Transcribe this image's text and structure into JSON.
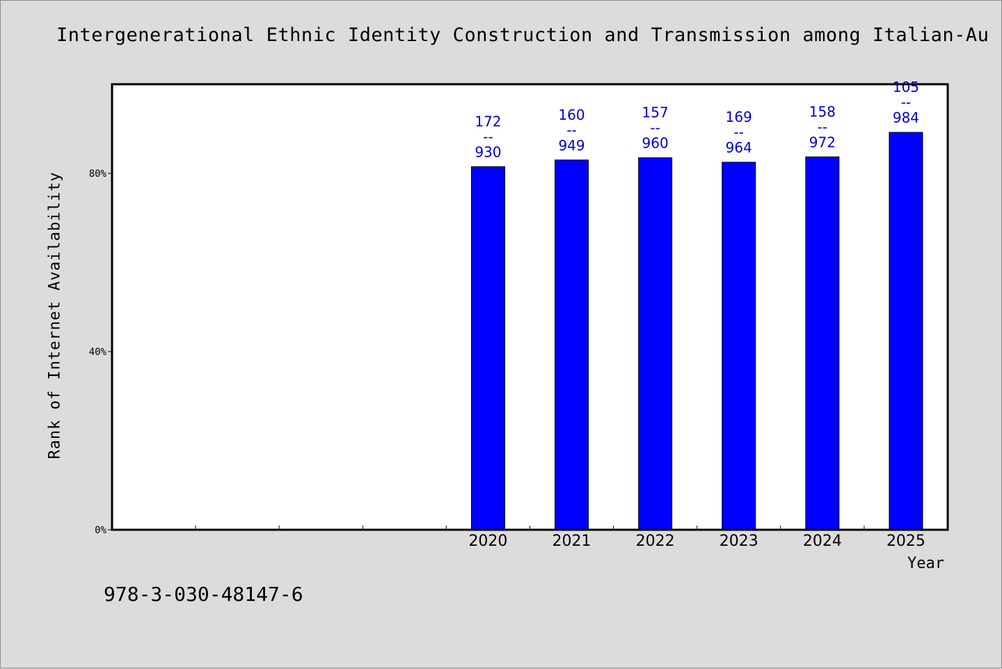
{
  "chart_data": {
    "type": "bar",
    "title": "Intergenerational Ethnic Identity Construction and Transmission among Italian-Au",
    "xlabel": "Year",
    "ylabel": "Rank of Internet Availability",
    "categories": [
      "",
      "",
      "",
      "",
      "2020",
      "2021",
      "2022",
      "2023",
      "2024",
      "2025"
    ],
    "values": [
      null,
      null,
      null,
      null,
      81.5,
      83.0,
      83.5,
      82.5,
      83.7,
      89.2
    ],
    "data_labels": [
      null,
      null,
      null,
      null,
      [
        "172",
        "--",
        "930"
      ],
      [
        "160",
        "--",
        "949"
      ],
      [
        "157",
        "--",
        "960"
      ],
      [
        "169",
        "--",
        "964"
      ],
      [
        "158",
        "--",
        "972"
      ],
      [
        "105",
        "--",
        "984"
      ]
    ],
    "ylim": [
      0,
      100
    ],
    "yticks": [
      0,
      40,
      80
    ],
    "ytick_labels": [
      "0%",
      "40%",
      "80%"
    ],
    "grid": false,
    "colors": {
      "bar": "#0000ff",
      "bar_edge": "#000000",
      "data_label": "#0000cc",
      "background": "#dcdcdc",
      "plot_background": "#ffffff"
    }
  },
  "footnote": "978-3-030-48147-6"
}
